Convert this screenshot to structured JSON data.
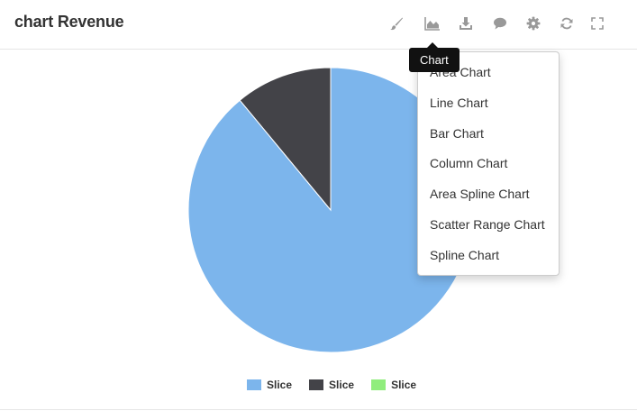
{
  "header": {
    "title": "chart Revenue"
  },
  "toolbar": {
    "icons": [
      "paintbrush-icon",
      "area-chart-icon",
      "download-icon",
      "comment-icon",
      "gear-icon",
      "refresh-icon",
      "fullscreen-icon"
    ],
    "tooltip": "Chart"
  },
  "menu": {
    "items": [
      {
        "label": "Area Chart"
      },
      {
        "label": "Line Chart"
      },
      {
        "label": "Bar Chart"
      },
      {
        "label": "Column Chart"
      },
      {
        "label": "Area Spline Chart"
      },
      {
        "label": "Scatter Range Chart"
      },
      {
        "label": "Spline Chart"
      }
    ]
  },
  "chart_data": {
    "type": "pie",
    "legend_position": "bottom",
    "series": [
      {
        "name": "Slice",
        "value": 89,
        "color": "#7cb5ec"
      },
      {
        "name": "Slice",
        "value": 11,
        "color": "#434348"
      },
      {
        "name": "Slice",
        "value": 0,
        "color": "#90ed7d"
      }
    ]
  },
  "colors": {
    "icon": "#999999",
    "border": "#e6e6e6"
  }
}
